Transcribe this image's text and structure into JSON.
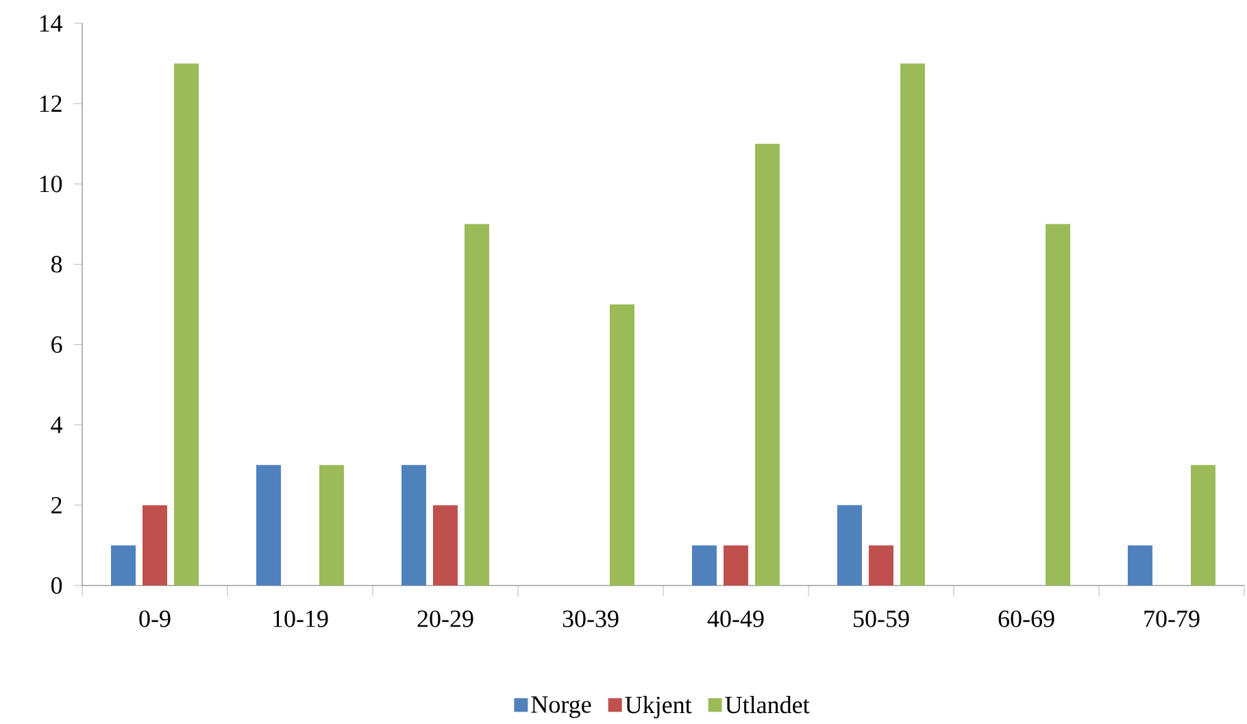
{
  "chart_data": {
    "type": "bar",
    "categories": [
      "0-9",
      "10-19",
      "20-29",
      "30-39",
      "40-49",
      "50-59",
      "60-69",
      "70-79"
    ],
    "series": [
      {
        "name": "Norge",
        "color": "#4f81bd",
        "values": [
          1,
          3,
          3,
          0,
          1,
          2,
          0,
          1
        ]
      },
      {
        "name": "Ukjent",
        "color": "#c0504d",
        "values": [
          2,
          0,
          2,
          0,
          1,
          1,
          0,
          0
        ]
      },
      {
        "name": "Utlandet",
        "color": "#9bbb59",
        "values": [
          13,
          3,
          9,
          7,
          11,
          13,
          9,
          3
        ]
      }
    ],
    "ylim": [
      0,
      14
    ],
    "yticks": [
      0,
      2,
      4,
      6,
      8,
      10,
      12,
      14
    ],
    "grid": false,
    "legend": "bottom"
  }
}
